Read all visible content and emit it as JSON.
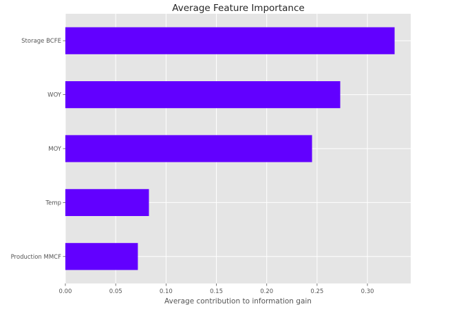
{
  "chart_data": {
    "type": "bar",
    "orientation": "horizontal",
    "title": "Average Feature Importance",
    "xlabel": "Average contribution to information gain",
    "ylabel": "",
    "categories": [
      "Storage BCFE",
      "WOY",
      "MOY",
      "Temp",
      "Production MMCF"
    ],
    "values": [
      0.327,
      0.273,
      0.245,
      0.083,
      0.072
    ],
    "xlim": [
      0,
      0.343
    ],
    "x_ticks": [
      "0.00",
      "0.05",
      "0.10",
      "0.15",
      "0.20",
      "0.25",
      "0.30"
    ],
    "grid": true,
    "legend": "none",
    "bar_color": "#6200ff",
    "plot_background": "#e5e5e5",
    "grid_color": "#ffffff"
  }
}
